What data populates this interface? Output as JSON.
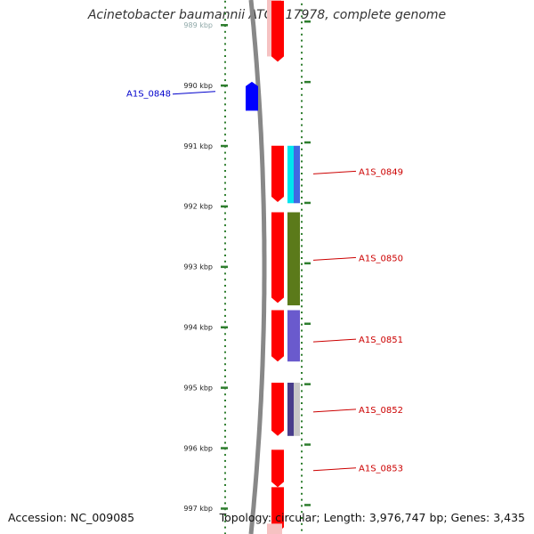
{
  "title": "Acinetobacter baumannii ATCC 17978, complete genome",
  "footer": {
    "accession": "Accession: NC_009085",
    "topology": "Topology: circular; Length: 3,976,747 bp; Genes: 3,435"
  },
  "colors": {
    "backbone": "#888888",
    "tick": "#2e7d2e",
    "reverse_gene": "#0000ff",
    "forward_cds": "#ff0000",
    "forward_label": "#cc0000",
    "reverse_label": "#0000cc"
  },
  "scale": {
    "unit": "kbp",
    "ticks": [
      {
        "kbp": 989,
        "label": "989 kbp"
      },
      {
        "kbp": 990,
        "label": "990 kbp"
      },
      {
        "kbp": 991,
        "label": "991 kbp"
      },
      {
        "kbp": 992,
        "label": "992 kbp"
      },
      {
        "kbp": 993,
        "label": "993 kbp"
      },
      {
        "kbp": 994,
        "label": "994 kbp"
      },
      {
        "kbp": 995,
        "label": "995 kbp"
      },
      {
        "kbp": 996,
        "label": "996 kbp"
      },
      {
        "kbp": 997,
        "label": "997 kbp"
      }
    ]
  },
  "features": [
    {
      "kind": "reverse_gene",
      "start_kbp": 989.94,
      "end_kbp": 990.42,
      "color": "#0000ff"
    },
    {
      "kind": "forward_cds",
      "start_kbp": 988.6,
      "end_kbp": 989.61,
      "color": "#ff0000"
    },
    {
      "kind": "forward_cds",
      "start_kbp": 991.0,
      "end_kbp": 991.93,
      "color": "#ff0000"
    },
    {
      "kind": "forward_cds",
      "start_kbp": 992.1,
      "end_kbp": 993.6,
      "color": "#ff0000"
    },
    {
      "kind": "forward_cds",
      "start_kbp": 993.72,
      "end_kbp": 994.57,
      "color": "#ff0000"
    },
    {
      "kind": "forward_cds",
      "start_kbp": 994.92,
      "end_kbp": 995.8,
      "color": "#ff0000"
    },
    {
      "kind": "forward_cds",
      "start_kbp": 996.03,
      "end_kbp": 996.65,
      "color": "#ff0000"
    },
    {
      "kind": "forward_cds",
      "start_kbp": 996.65,
      "end_kbp": 997.4,
      "color": "#ff0000"
    },
    {
      "kind": "domain",
      "start_kbp": 991.0,
      "end_kbp": 991.95,
      "color": "#00e5ee"
    },
    {
      "kind": "domain",
      "start_kbp": 991.0,
      "end_kbp": 991.95,
      "color": "#4169e1"
    },
    {
      "kind": "domain",
      "start_kbp": 992.1,
      "end_kbp": 993.64,
      "color": "#5b7a1a"
    },
    {
      "kind": "domain",
      "start_kbp": 993.72,
      "end_kbp": 994.57,
      "color": "#6a5acd"
    },
    {
      "kind": "domain",
      "start_kbp": 994.92,
      "end_kbp": 995.8,
      "color": "#483d8b"
    },
    {
      "kind": "domain",
      "start_kbp": 994.92,
      "end_kbp": 995.8,
      "color": "#c8c8c8"
    }
  ],
  "gene_labels": [
    {
      "text": "A1S_0848",
      "strand": "reverse",
      "kbp": 990.1
    },
    {
      "text": "A1S_0849",
      "strand": "forward",
      "kbp": 991.42
    },
    {
      "text": "A1S_0850",
      "strand": "forward",
      "kbp": 992.85
    },
    {
      "text": "A1S_0851",
      "strand": "forward",
      "kbp": 994.2
    },
    {
      "text": "A1S_0852",
      "strand": "forward",
      "kbp": 995.36
    },
    {
      "text": "A1S_0853",
      "strand": "forward",
      "kbp": 996.33
    }
  ]
}
